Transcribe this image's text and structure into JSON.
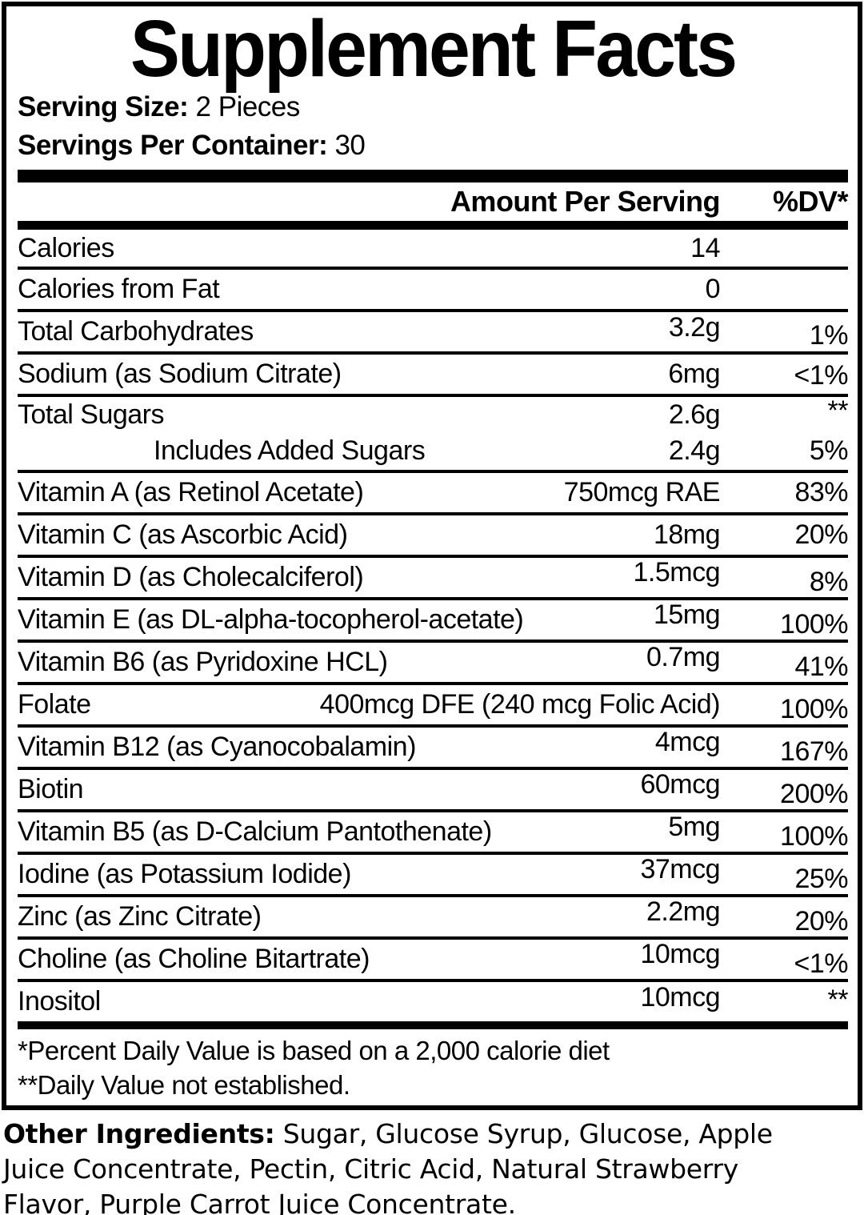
{
  "label": {
    "title": "Supplement Facts",
    "serving_size_label": "Serving Size:",
    "serving_size_value": "2 Pieces",
    "servings_per_container_label": "Servings Per Container:",
    "servings_per_container_value": "30",
    "columns": {
      "amount": "Amount Per Serving",
      "dv": "%DV*"
    },
    "rows": [
      {
        "name": "Calories",
        "amount": "14",
        "dv": ""
      },
      {
        "name": "Calories from Fat",
        "amount": "0",
        "dv": ""
      },
      {
        "name": "Total Carbohydrates",
        "amount": "3.2g",
        "dv": "1%"
      },
      {
        "name": "Sodium (as Sodium Citrate)",
        "amount": "6mg",
        "dv": "<1%"
      },
      {
        "name": "Total Sugars",
        "amount": "2.6g",
        "dv": "**"
      },
      {
        "name": "Includes Added Sugars",
        "amount": "2.4g",
        "dv": "5%",
        "indent": true
      },
      {
        "name": "Vitamin A (as Retinol Acetate)",
        "amount": "750mcg RAE",
        "dv": "83%"
      },
      {
        "name": "Vitamin C (as Ascorbic Acid)",
        "amount": "18mg",
        "dv": "20%"
      },
      {
        "name": "Vitamin D (as Cholecalciferol)",
        "amount": "1.5mcg",
        "dv": "8%"
      },
      {
        "name": "Vitamin E (as DL-alpha-tocopherol-acetate)",
        "amount": "15mg",
        "dv": "100%"
      },
      {
        "name": "Vitamin B6 (as Pyridoxine HCL)",
        "amount": "0.7mg",
        "dv": "41%"
      },
      {
        "name": "Folate",
        "amount": "400mcg DFE (240 mcg Folic Acid)",
        "dv": "100%"
      },
      {
        "name": "Vitamin B12 (as Cyanocobalamin)",
        "amount": "4mcg",
        "dv": "167%"
      },
      {
        "name": "Biotin",
        "amount": "60mcg",
        "dv": "200%"
      },
      {
        "name": "Vitamin B5 (as D-Calcium Pantothenate)",
        "amount": "5mg",
        "dv": "100%"
      },
      {
        "name": "Iodine (as Potassium Iodide)",
        "amount": "37mcg",
        "dv": "25%"
      },
      {
        "name": "Zinc (as Zinc Citrate)",
        "amount": "2.2mg",
        "dv": "20%"
      },
      {
        "name": "Choline (as Choline Bitartrate)",
        "amount": "10mcg",
        "dv": "<1%"
      },
      {
        "name": "Inositol",
        "amount": "10mcg",
        "dv": "**"
      }
    ],
    "footnotes": {
      "percent_dv": "*Percent Daily Value is based on a 2,000 calorie diet",
      "not_established": "**Daily Value not established."
    },
    "colors": {
      "text": "#000000",
      "background": "#ffffff"
    }
  },
  "other_ingredients": {
    "label": "Other Ingredients:",
    "text": "Sugar, Glucose Syrup, Glucose, Apple Juice Concentrate, Pectin, Citric Acid, Natural Strawberry Flavor, Purple Carrot Juice Concentrate."
  }
}
